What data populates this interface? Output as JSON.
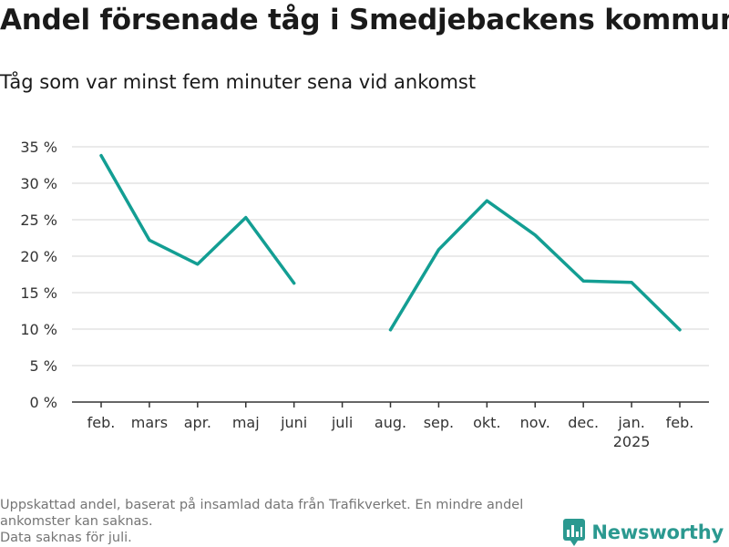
{
  "chart_data": {
    "type": "line",
    "title": "Andel försenade tåg i Smedjebackens kommun",
    "subtitle": "Tåg som var minst fem minuter sena vid ankomst",
    "xlabel": "",
    "ylabel": "",
    "categories": [
      "feb.",
      "mars",
      "apr.",
      "maj",
      "juni",
      "juli",
      "aug.",
      "sep.",
      "okt.",
      "nov.",
      "dec.",
      "jan.",
      "feb."
    ],
    "year_label": {
      "category_index": 11,
      "text": "2025"
    },
    "series": [
      {
        "values": [
          33.8,
          22.2,
          18.9,
          25.3,
          16.3,
          null,
          9.9,
          20.9,
          27.6,
          22.9,
          16.6,
          16.4,
          9.9
        ]
      }
    ],
    "ylim": [
      0,
      35
    ],
    "yticks": [
      0,
      5,
      10,
      15,
      20,
      25,
      30,
      35
    ],
    "ytick_labels": [
      "0 %",
      "5 %",
      "10 %",
      "15 %",
      "20 %",
      "25 %",
      "30 %",
      "35 %"
    ],
    "grid": true,
    "line_color": "#139e93"
  },
  "footnote": {
    "line1": "Uppskattad andel, baserat på insamlad data från Trafikverket. En mindre andel ankomster kan saknas.",
    "line2": "Data saknas för juli."
  },
  "brand": {
    "name": "Newsworthy",
    "icon": "bar-chart-logo-icon",
    "color": "#2b9990"
  }
}
